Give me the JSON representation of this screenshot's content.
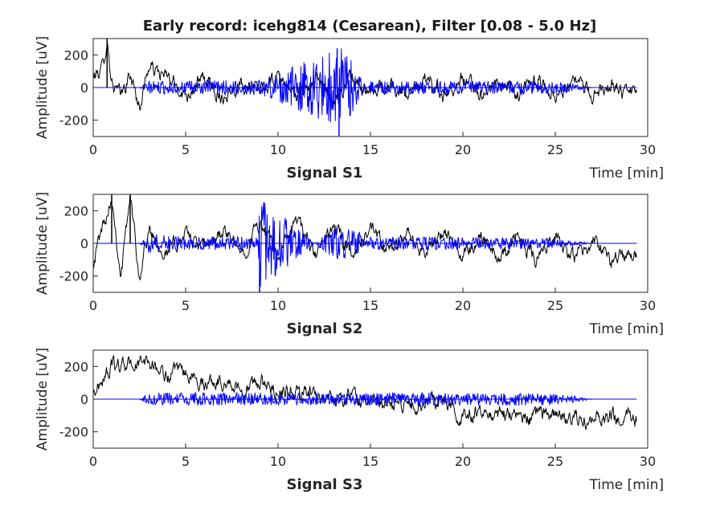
{
  "title": "Early record: icehg814 (Cesarean), Filter [0.08 - 5.0 Hz]",
  "colors": {
    "raw": "#000000",
    "filtered": "#0000ff",
    "axis": "#262626",
    "background": "#ffffff"
  },
  "chart_data": [
    {
      "type": "line",
      "subtitle": "Signal S1",
      "xlabel": "Time [min]",
      "ylabel": "Amplitude [uV]",
      "xlim": [
        0,
        30
      ],
      "ylim": [
        -300,
        300
      ],
      "xticks": [
        "0",
        "5",
        "10",
        "15",
        "20",
        "25",
        "30"
      ],
      "yticks": [
        "200",
        "0",
        "-200"
      ],
      "series": [
        {
          "color": "#000000",
          "x": [
            0,
            0.5,
            0.75,
            1,
            1.5,
            2,
            2.5,
            3,
            4,
            5,
            6,
            7,
            8,
            9,
            10,
            11,
            12,
            13,
            14,
            15,
            16,
            17,
            18,
            19,
            20,
            21,
            22,
            23,
            24,
            25,
            26,
            27,
            28,
            29,
            29.4
          ],
          "amplitude": [
            60,
            120,
            300,
            40,
            -60,
            80,
            -120,
            130,
            60,
            -40,
            50,
            -60,
            40,
            -40,
            70,
            -50,
            50,
            -80,
            60,
            -50,
            40,
            -60,
            50,
            -40,
            60,
            -40,
            40,
            -60,
            50,
            -40,
            40,
            -50,
            40,
            -60,
            0
          ]
        },
        {
          "color": "#0000ff",
          "x": [
            0,
            2.5,
            3,
            5,
            9,
            13.2,
            13.3,
            15,
            20,
            25,
            27,
            29.4
          ],
          "amplitude": [
            0,
            0,
            40,
            40,
            50,
            240,
            -300,
            40,
            40,
            40,
            0,
            0
          ]
        }
      ]
    },
    {
      "type": "line",
      "subtitle": "Signal S2",
      "xlabel": "Time [min]",
      "ylabel": "Amplitude [uV]",
      "xlim": [
        0,
        30
      ],
      "ylim": [
        -300,
        300
      ],
      "xticks": [
        "0",
        "5",
        "10",
        "15",
        "20",
        "25",
        "30"
      ],
      "yticks": [
        "200",
        "0",
        "-200"
      ],
      "series": [
        {
          "color": "#000000",
          "x": [
            0,
            0.5,
            1,
            1.5,
            2,
            2.5,
            3,
            4,
            5,
            6,
            7,
            8,
            9,
            10,
            11,
            12,
            13,
            14,
            15,
            16,
            17,
            18,
            19,
            20,
            21,
            22,
            23,
            24,
            25,
            26,
            27,
            28,
            29,
            29.4
          ],
          "amplitude": [
            -100,
            100,
            300,
            -200,
            300,
            -200,
            80,
            -60,
            60,
            -40,
            80,
            -60,
            120,
            -80,
            140,
            -80,
            100,
            -60,
            80,
            -60,
            60,
            -60,
            60,
            -80,
            50,
            -80,
            40,
            -90,
            30,
            -100,
            20,
            -110,
            -60,
            -60
          ]
        },
        {
          "color": "#0000ff",
          "x": [
            0,
            2.5,
            3,
            5,
            8.9,
            9,
            13.2,
            15,
            20,
            25,
            27,
            29.4
          ],
          "amplitude": [
            0,
            0,
            60,
            40,
            40,
            -300,
            120,
            40,
            40,
            30,
            0,
            0
          ]
        }
      ]
    },
    {
      "type": "line",
      "subtitle": "Signal S3",
      "xlabel": "Time [min]",
      "ylabel": "Amplitude [uV]",
      "xlim": [
        0,
        30
      ],
      "ylim": [
        -300,
        300
      ],
      "xticks": [
        "0",
        "5",
        "10",
        "15",
        "20",
        "25",
        "30"
      ],
      "yticks": [
        "200",
        "0",
        "-200"
      ],
      "series": [
        {
          "color": "#000000",
          "x": [
            0,
            0.4,
            1,
            2,
            3,
            4,
            5,
            6,
            7,
            8,
            9,
            10,
            11,
            12,
            13,
            14,
            15,
            16,
            17,
            18,
            19,
            20,
            21,
            22,
            23,
            24,
            25,
            26,
            27,
            28,
            29,
            29.4
          ],
          "amplitude": [
            40,
            100,
            200,
            210,
            230,
            140,
            160,
            100,
            120,
            60,
            100,
            50,
            40,
            30,
            10,
            20,
            -20,
            -40,
            -20,
            -40,
            0,
            -100,
            -80,
            -90,
            -100,
            -110,
            -80,
            -120,
            -130,
            -100,
            -120,
            -130
          ]
        },
        {
          "color": "#0000ff",
          "x": [
            0,
            2.5,
            3,
            5,
            10,
            15,
            20,
            25,
            27,
            29.4
          ],
          "amplitude": [
            0,
            0,
            40,
            40,
            40,
            40,
            40,
            40,
            0,
            0
          ]
        }
      ]
    }
  ]
}
